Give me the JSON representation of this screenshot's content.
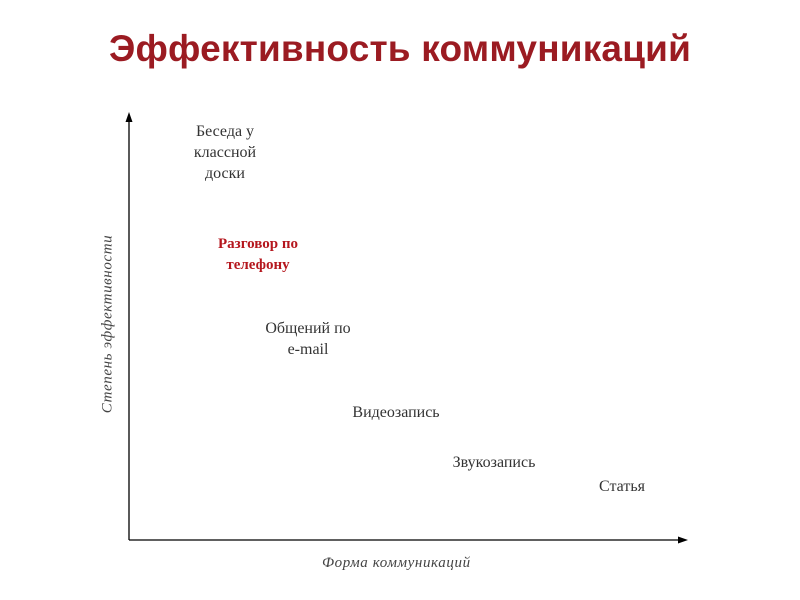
{
  "title": "Эффективность коммуникаций",
  "axes": {
    "x_label": "Форма коммуникаций",
    "y_label": "Степень эффективности"
  },
  "items": [
    {
      "lines": [
        "Беседа у",
        "классной",
        "доски"
      ],
      "highlight": false
    },
    {
      "lines": [
        "Разговор по",
        "телефону"
      ],
      "highlight": true,
      "color": "#b5171e"
    },
    {
      "lines": [
        "Общений по",
        "e-mail"
      ],
      "highlight": false
    },
    {
      "lines": [
        "Видеозапись"
      ],
      "highlight": false
    },
    {
      "lines": [
        "Звукозапись"
      ],
      "highlight": false
    },
    {
      "lines": [
        "Статья"
      ],
      "highlight": false
    }
  ],
  "colors": {
    "title": "#9b1b22",
    "text": "#333333",
    "highlight": "#b5171e",
    "axis": "#000000"
  }
}
